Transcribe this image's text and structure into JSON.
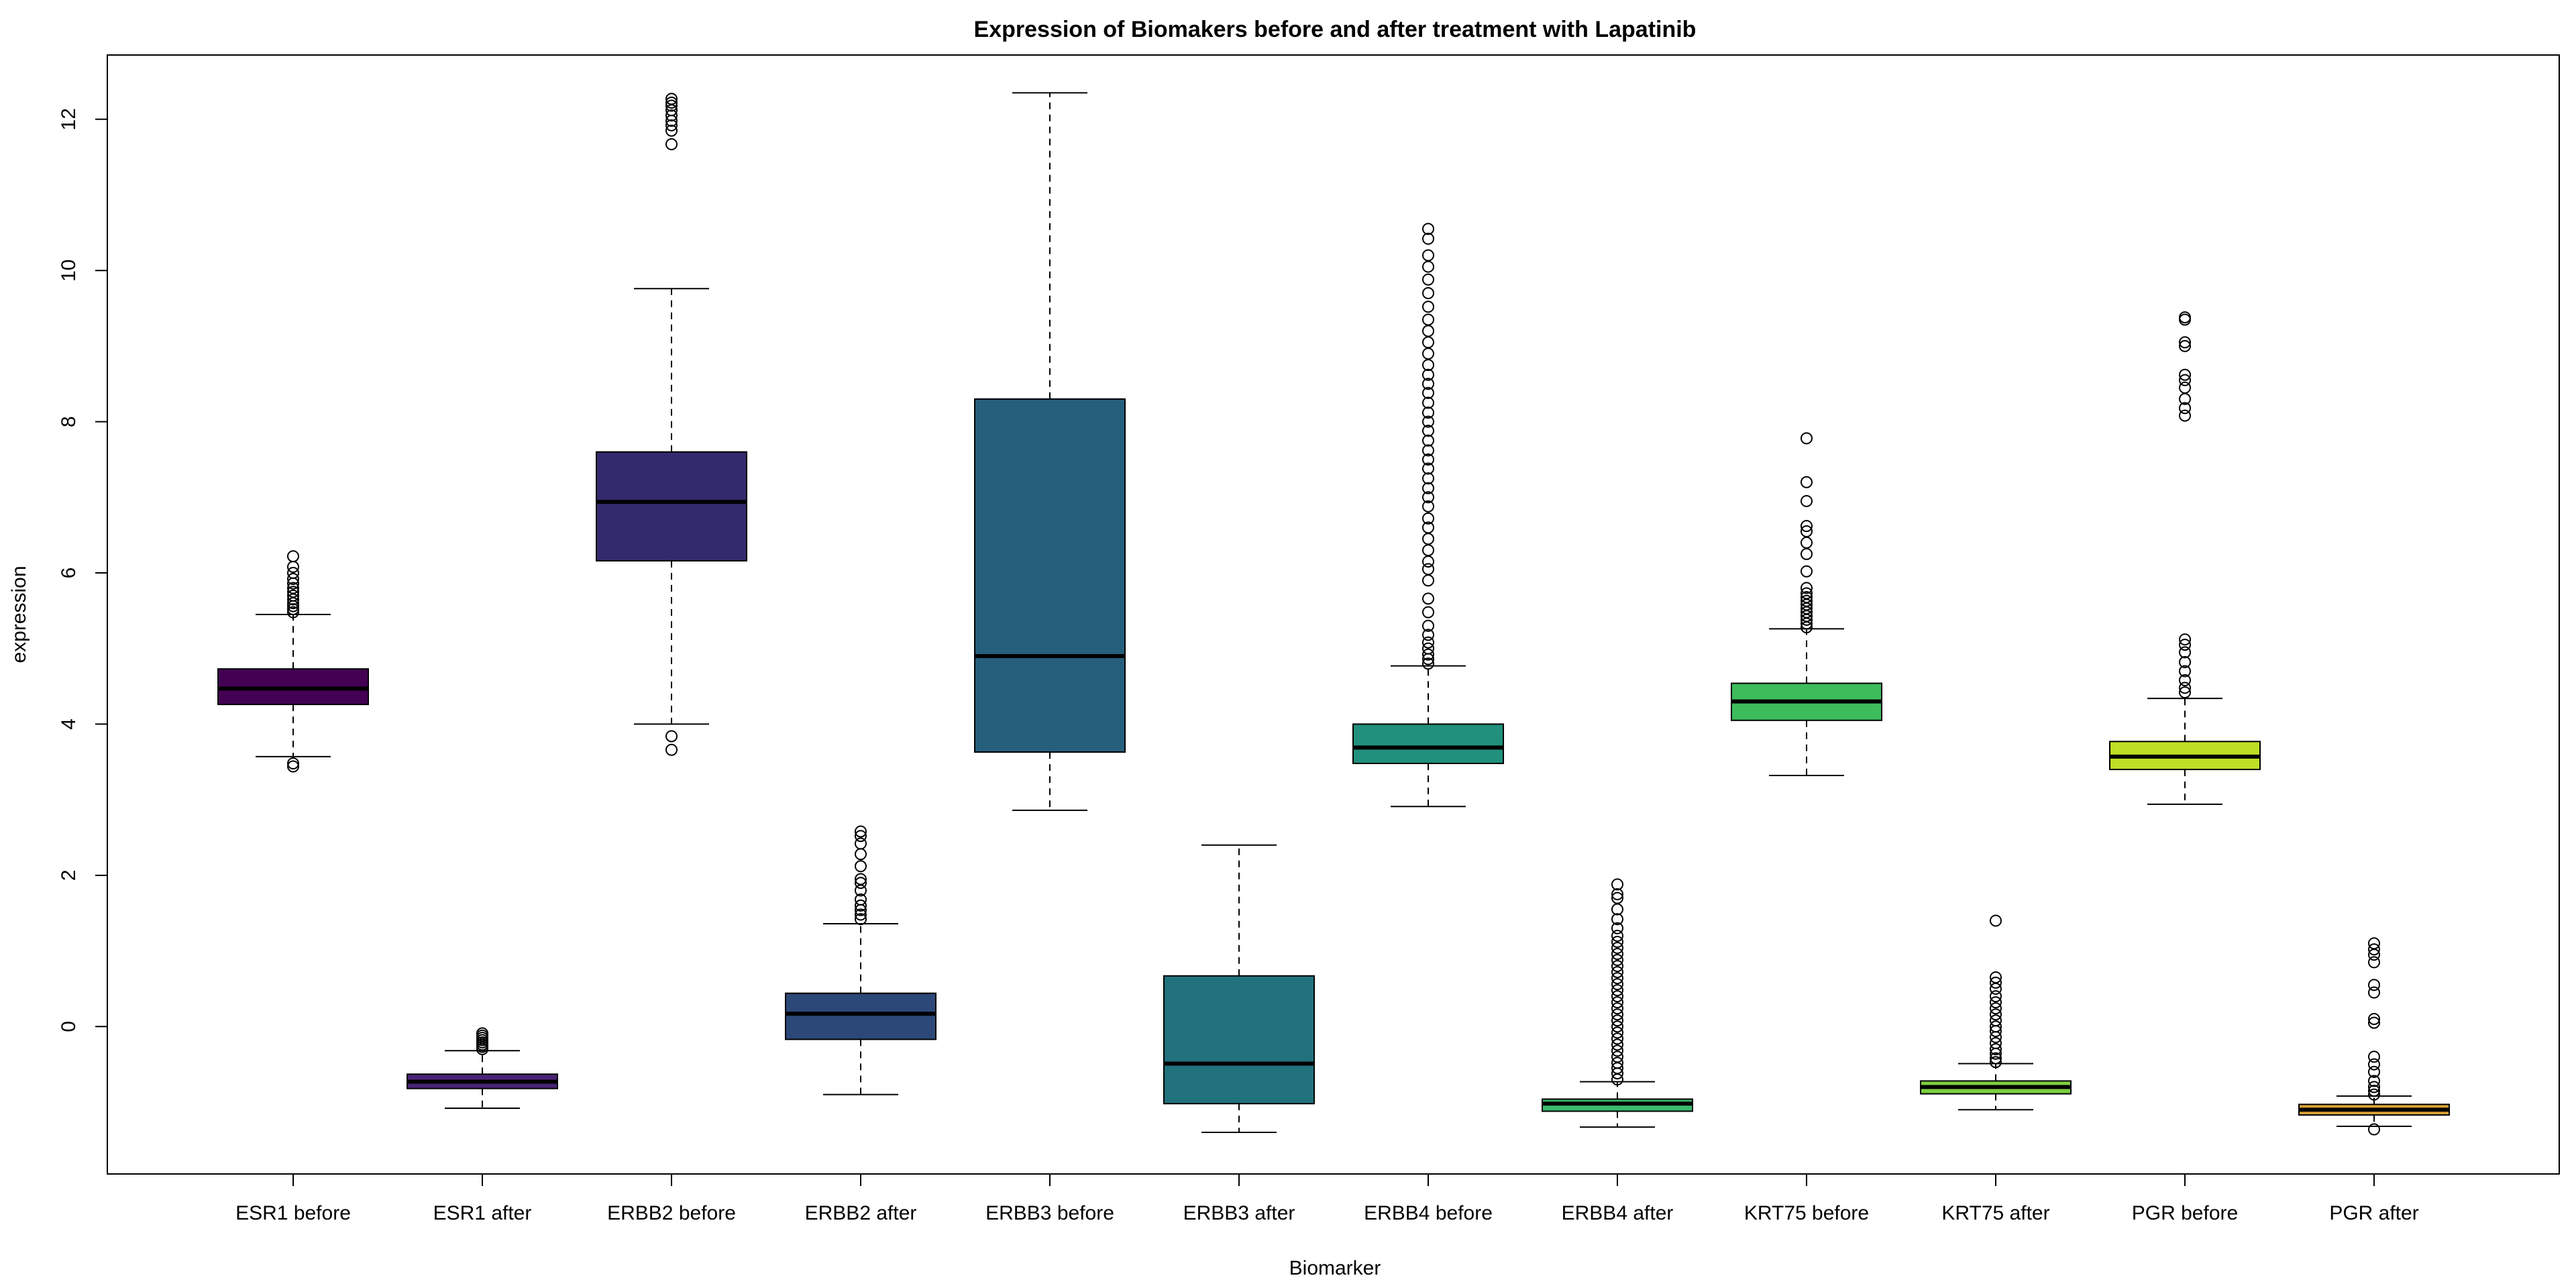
{
  "chart_data": {
    "type": "boxplot",
    "title": "Expression of Biomakers before and after treatment with Lapatinib",
    "xlabel": "Biomarker",
    "ylabel": "expression",
    "ylim": [
      -1.95,
      12.85
    ],
    "yticks": [
      0,
      2,
      4,
      6,
      8,
      10,
      12
    ],
    "grid": false,
    "legend": "none",
    "categories": [
      "ESR1 before",
      "ESR1 after",
      "ERBB2 before",
      "ERBB2 after",
      "ERBB3 before",
      "ERBB3 after",
      "ERBB4 before",
      "ERBB4 after",
      "KRT75 before",
      "KRT75 after",
      "PGR before",
      "PGR after"
    ],
    "boxes": [
      {
        "category": "ESR1 before",
        "whisker_low": 3.57,
        "q1": 4.26,
        "median": 4.47,
        "q3": 4.73,
        "whisker_high": 5.45,
        "color": "#440154",
        "outliers": [
          3.44,
          3.48,
          5.48,
          5.52,
          5.56,
          5.6,
          5.65,
          5.7,
          5.75,
          5.8,
          5.86,
          5.92,
          6.0,
          6.08,
          6.22
        ]
      },
      {
        "category": "ESR1 after",
        "whisker_low": -1.08,
        "q1": -0.82,
        "median": -0.73,
        "q3": -0.63,
        "whisker_high": -0.32,
        "color": "#482475",
        "outliers": [
          -0.3,
          -0.27,
          -0.24,
          -0.21,
          -0.18,
          -0.15,
          -0.12,
          -0.09
        ]
      },
      {
        "category": "ERBB2 before",
        "whisker_low": 4.0,
        "q1": 6.16,
        "median": 6.94,
        "q3": 7.6,
        "whisker_high": 9.76,
        "color": "#332A6E",
        "outliers": [
          3.66,
          3.84,
          11.67,
          11.85,
          11.92,
          11.98,
          12.05,
          12.12,
          12.18,
          12.22,
          12.27
        ]
      },
      {
        "category": "ERBB2 after",
        "whisker_low": -0.9,
        "q1": -0.17,
        "median": 0.17,
        "q3": 0.44,
        "whisker_high": 1.36,
        "color": "#2C4878",
        "outliers": [
          1.42,
          1.48,
          1.54,
          1.6,
          1.68,
          1.8,
          1.9,
          1.95,
          2.12,
          2.28,
          2.42,
          2.52,
          2.58
        ]
      },
      {
        "category": "ERBB3 before",
        "whisker_low": 2.86,
        "q1": 3.63,
        "median": 4.9,
        "q3": 8.3,
        "whisker_high": 12.35,
        "color": "#255F7C",
        "outliers": []
      },
      {
        "category": "ERBB3 after",
        "whisker_low": -1.4,
        "q1": -1.02,
        "median": -0.49,
        "q3": 0.67,
        "whisker_high": 2.4,
        "color": "#21727C",
        "outliers": []
      },
      {
        "category": "ERBB4 before",
        "whisker_low": 2.91,
        "q1": 3.48,
        "median": 3.69,
        "q3": 4.0,
        "whisker_high": 4.77,
        "color": "#21907C",
        "outliers": [
          4.8,
          4.86,
          4.92,
          5.0,
          5.08,
          5.18,
          5.3,
          5.48,
          5.66,
          5.9,
          6.05,
          6.15,
          6.3,
          6.45,
          6.6,
          6.72,
          6.88,
          7.0,
          7.12,
          7.25,
          7.38,
          7.5,
          7.62,
          7.75,
          7.88,
          8.0,
          8.12,
          8.25,
          8.38,
          8.5,
          8.62,
          8.75,
          8.9,
          9.05,
          9.2,
          9.35,
          9.52,
          9.7,
          9.88,
          10.05,
          10.2,
          10.42,
          10.55
        ]
      },
      {
        "category": "ERBB4 after",
        "whisker_low": -1.33,
        "q1": -1.12,
        "median": -1.02,
        "q3": -0.96,
        "whisker_high": -0.73,
        "color": "#3ABA6E",
        "outliers": [
          -0.7,
          -0.62,
          -0.55,
          -0.48,
          -0.4,
          -0.32,
          -0.24,
          -0.16,
          -0.08,
          0.0,
          0.08,
          0.16,
          0.24,
          0.32,
          0.4,
          0.48,
          0.56,
          0.64,
          0.72,
          0.8,
          0.88,
          0.96,
          1.04,
          1.12,
          1.2,
          1.3,
          1.42,
          1.55,
          1.7,
          1.75,
          1.88
        ]
      },
      {
        "category": "KRT75 before",
        "whisker_low": 3.32,
        "q1": 4.05,
        "median": 4.3,
        "q3": 4.54,
        "whisker_high": 5.26,
        "color": "#3DBC5C",
        "outliers": [
          5.28,
          5.33,
          5.38,
          5.43,
          5.48,
          5.53,
          5.58,
          5.63,
          5.68,
          5.73,
          5.8,
          6.02,
          6.25,
          6.4,
          6.55,
          6.62,
          6.95,
          7.2,
          7.78
        ]
      },
      {
        "category": "KRT75 after",
        "whisker_low": -1.1,
        "q1": -0.89,
        "median": -0.8,
        "q3": -0.72,
        "whisker_high": -0.49,
        "color": "#7DCF3F",
        "outliers": [
          -0.47,
          -0.42,
          -0.36,
          -0.3,
          -0.22,
          -0.14,
          -0.06,
          0.0,
          0.08,
          0.16,
          0.24,
          0.32,
          0.4,
          0.5,
          0.58,
          0.65,
          1.4
        ]
      },
      {
        "category": "PGR before",
        "whisker_low": 2.94,
        "q1": 3.4,
        "median": 3.57,
        "q3": 3.77,
        "whisker_high": 4.34,
        "color": "#BDDF26",
        "outliers": [
          4.42,
          4.48,
          4.58,
          4.7,
          4.82,
          4.95,
          5.05,
          5.12,
          8.08,
          8.18,
          8.3,
          8.45,
          8.55,
          8.62,
          9.0,
          9.05,
          9.35,
          9.38
        ]
      },
      {
        "category": "PGR after",
        "whisker_low": -1.32,
        "q1": -1.17,
        "median": -1.1,
        "q3": -1.03,
        "whisker_high": -0.92,
        "color": "#D8A136",
        "outliers": [
          -1.36,
          -0.9,
          -0.85,
          -0.8,
          -0.72,
          -0.6,
          -0.5,
          -0.4,
          0.05,
          0.1,
          0.45,
          0.55,
          0.85,
          0.95,
          1.02,
          1.1
        ]
      }
    ]
  }
}
